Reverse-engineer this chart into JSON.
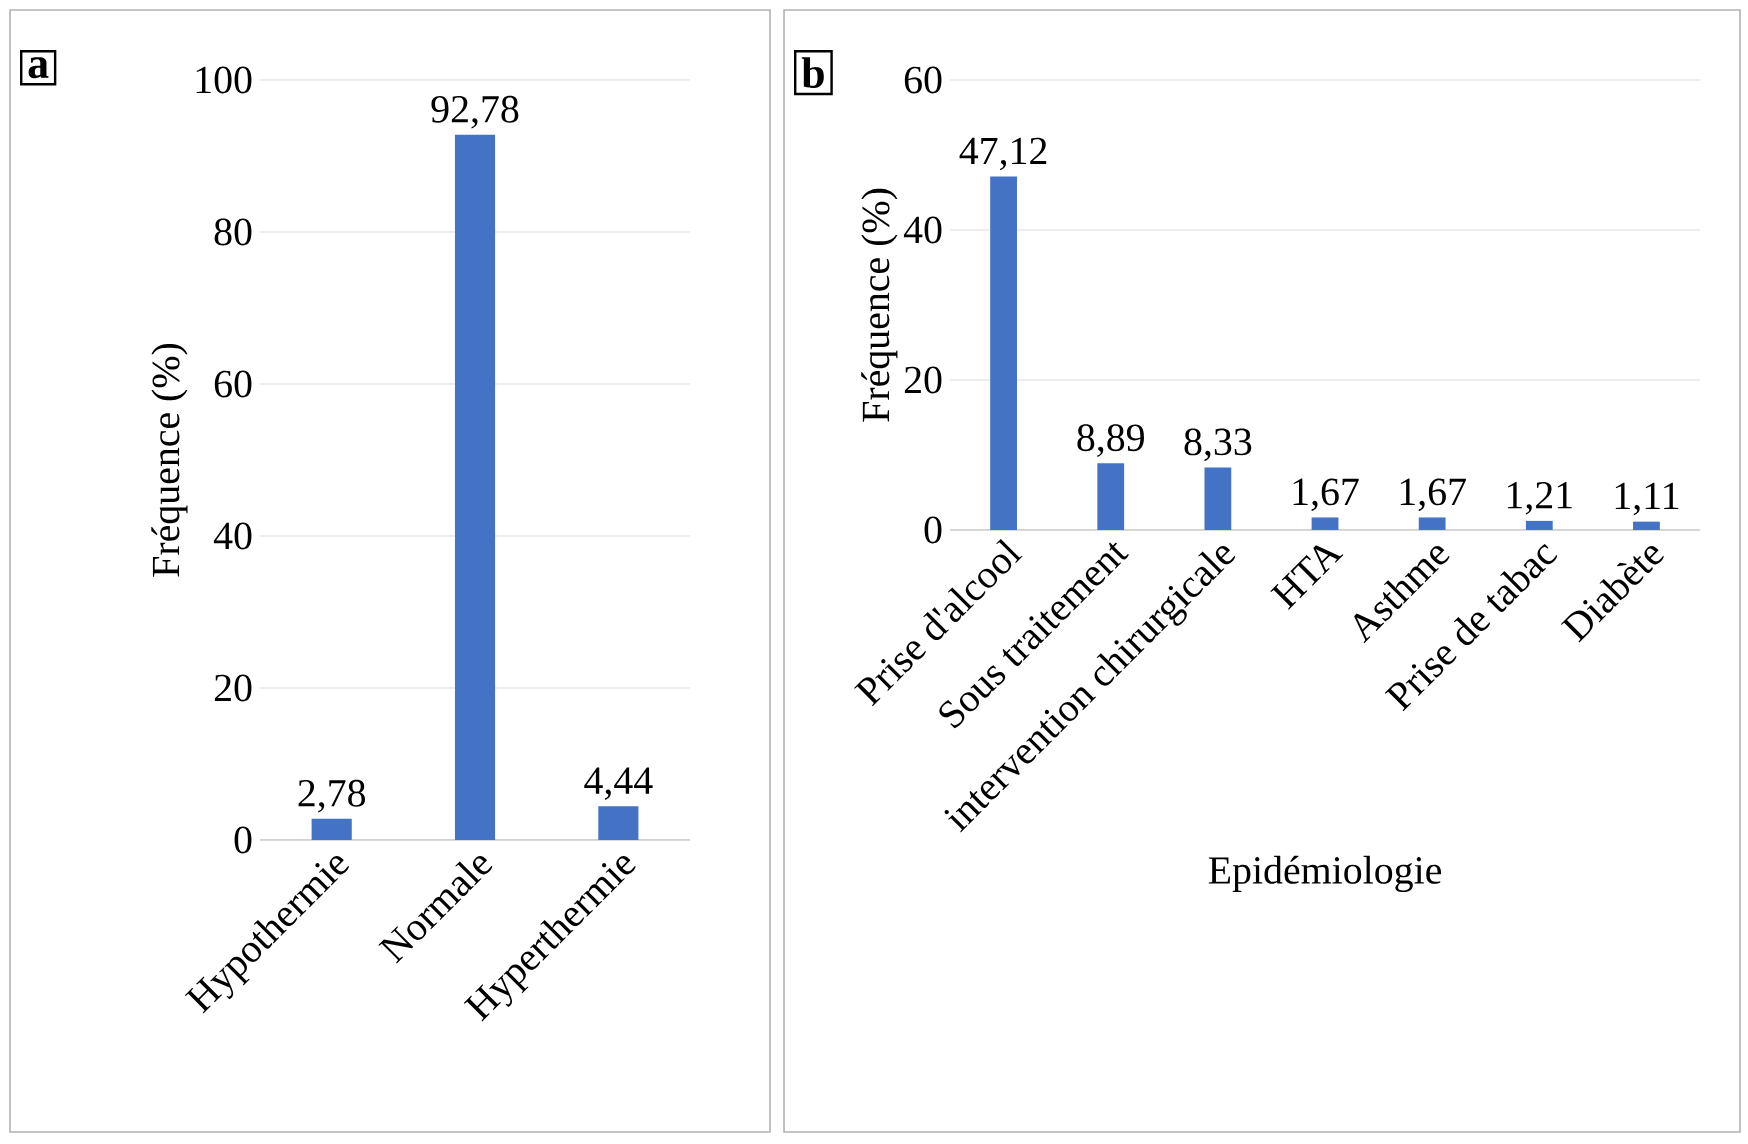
{
  "chart_data": [
    {
      "type": "bar",
      "categories": [
        "Hypothermie",
        "Normale",
        "Hyperthermie"
      ],
      "values": [
        2.78,
        92.78,
        4.44
      ],
      "value_labels": [
        "2,78",
        "92,78",
        "4,44"
      ],
      "color": "#4472c4",
      "ylim": [
        0,
        100
      ],
      "yticks": [
        0,
        20,
        40,
        60,
        80,
        100
      ],
      "grid": "y",
      "ylabel": "Fréquence (%)",
      "annotations": [
        "a"
      ]
    },
    {
      "type": "bar",
      "categories": [
        "Prise d'alcool",
        "Sous traitement",
        "intervention chirurgicale",
        "HTA",
        "Asthme",
        "Prise de tabac",
        "Diabète"
      ],
      "values": [
        47.12,
        8.89,
        8.33,
        1.67,
        1.67,
        1.21,
        1.11
      ],
      "value_labels": [
        "47,12",
        "8,89",
        "8,33",
        "1,67",
        "1,67",
        "1,21",
        "1,11"
      ],
      "color": "#4472c4",
      "ylim": [
        0,
        60
      ],
      "yticks": [
        0,
        20,
        40,
        60
      ],
      "grid": "y",
      "ylabel": "Fréquence (%)",
      "xlabel": "Epidémiologie",
      "annotations": [
        "b"
      ]
    }
  ]
}
